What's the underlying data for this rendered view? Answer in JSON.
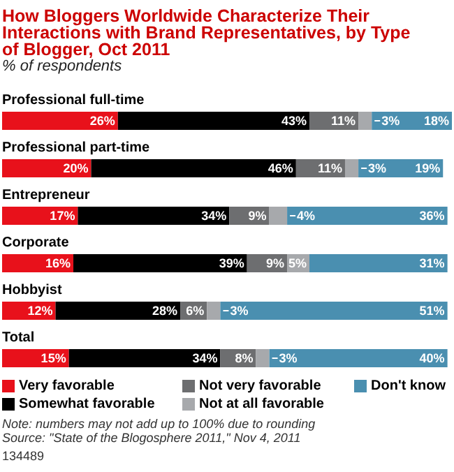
{
  "chart_data": {
    "type": "bar",
    "orientation": "horizontal",
    "stacked": true,
    "title": "How Bloggers Worldwide Characterize Their Interactions with Brand Representatives, by Type of Blogger, Oct 2011",
    "subtitle": "% of respondents",
    "categories": [
      "Professional full-time",
      "Professional part-time",
      "Entrepreneur",
      "Corporate",
      "Hobbyist",
      "Total"
    ],
    "series": [
      {
        "name": "Very favorable",
        "color": "#e8111b",
        "values": [
          26,
          20,
          17,
          16,
          12,
          15
        ],
        "value_labels": [
          "26%",
          "20%",
          "17%",
          "16%",
          "12%",
          "15%"
        ]
      },
      {
        "name": "Somewhat favorable",
        "color": "#000000",
        "values": [
          43,
          46,
          34,
          39,
          28,
          34
        ],
        "value_labels": [
          "43%",
          "46%",
          "34%",
          "39%",
          "28%",
          "34%"
        ]
      },
      {
        "name": "Not very favorable",
        "color": "#6d6e70",
        "values": [
          11,
          11,
          9,
          9,
          6,
          8
        ],
        "value_labels": [
          "11%",
          "11%",
          "9%",
          "9%",
          "6%",
          "8%"
        ]
      },
      {
        "name": "Not at all favorable",
        "color": "#a7a9ac",
        "values": [
          3,
          3,
          4,
          5,
          3,
          3
        ],
        "value_labels": [
          "3%",
          "3%",
          "4%",
          "5%",
          "3%",
          "3%"
        ]
      },
      {
        "name": "Don't know",
        "color": "#4a8fb0",
        "values": [
          18,
          19,
          36,
          31,
          51,
          40
        ],
        "value_labels": [
          "18%",
          "19%",
          "36%",
          "31%",
          "51%",
          "40%"
        ]
      }
    ],
    "legend": "bottom",
    "annotations": [
      "Note: numbers may not add up to 100% due to rounding",
      "Source: \"State of the Blogosphere 2011,\" Nov 4, 2011",
      "134489"
    ]
  }
}
